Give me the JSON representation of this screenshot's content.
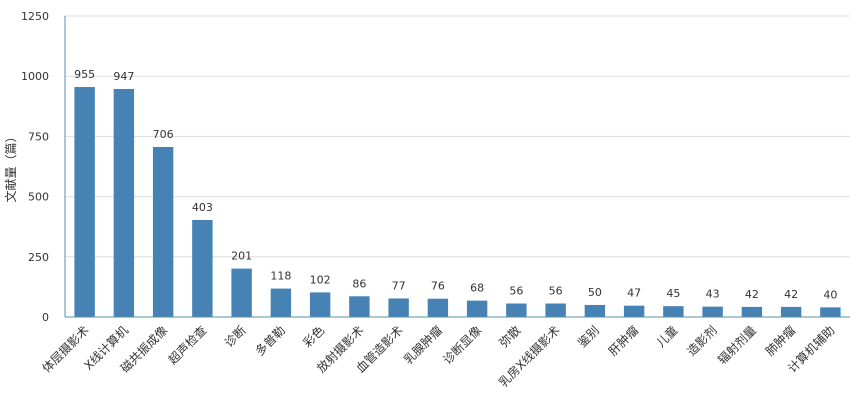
{
  "chart_data": {
    "type": "bar",
    "ylabel": "文献量（篇）",
    "ylim": [
      0,
      1250
    ],
    "yticks": [
      0,
      250,
      500,
      750,
      1000,
      1250
    ],
    "grid": true,
    "bar_color": "#4682b4",
    "axis_color": "#5a8fa8",
    "grid_color": "#dddddd",
    "categories": [
      "体层摄影术",
      "X线计算机",
      "磁共振成像",
      "超声检查",
      "诊断",
      "多普勒",
      "彩色",
      "放射摄影术",
      "血管造影术",
      "乳腺肿瘤",
      "诊断显像",
      "弥散",
      "乳房X线摄影术",
      "鉴别",
      "肝肿瘤",
      "儿童",
      "造影剂",
      "辐射剂量",
      "肺肿瘤",
      "计算机辅助"
    ],
    "values": [
      955,
      947,
      706,
      403,
      201,
      118,
      102,
      86,
      77,
      76,
      68,
      56,
      56,
      50,
      47,
      45,
      43,
      42,
      42,
      40
    ]
  }
}
